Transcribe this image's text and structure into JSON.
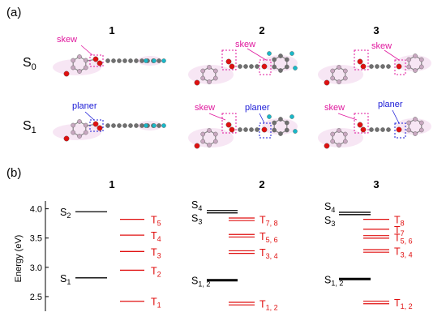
{
  "panel_a": {
    "label": "(a)",
    "columns": [
      "1",
      "2",
      "3"
    ],
    "row_s0": {
      "main": "S",
      "sub": "0"
    },
    "row_s1": {
      "main": "S",
      "sub": "1"
    },
    "annot_skew": "skew",
    "annot_planer": "planer",
    "colors": {
      "skew": "#e0189e",
      "planer": "#1a1ad6",
      "oxygen": "#e01010",
      "carbon": "#707070",
      "hydrogen_aryl": "#c8a8c0",
      "fluorine": "#19b8c8"
    }
  },
  "panel_b": {
    "label": "(b)",
    "columns": [
      "1",
      "2",
      "3"
    ],
    "ylabel": "Energy (eV)",
    "ylim": [
      2.25,
      4.05
    ],
    "yticks": [
      "4.0",
      "3.5",
      "3.0",
      "2.5"
    ],
    "ytick_values": [
      4.0,
      3.5,
      3.0,
      2.5
    ],
    "colors": {
      "singlet": "#000000",
      "triplet": "#e01010"
    },
    "molecules": [
      {
        "name": "1",
        "singlets": [
          {
            "label": "S",
            "sub": "2",
            "energy": 3.95,
            "lines": 1
          },
          {
            "label": "S",
            "sub": "1",
            "energy": 2.82,
            "lines": 1
          }
        ],
        "triplets": [
          {
            "label": "T",
            "sub": "5",
            "energy": 3.82,
            "lines": 1
          },
          {
            "label": "T",
            "sub": "4",
            "energy": 3.55,
            "lines": 1
          },
          {
            "label": "T",
            "sub": "3",
            "energy": 3.27,
            "lines": 1
          },
          {
            "label": "T",
            "sub": "2",
            "energy": 2.95,
            "lines": 1
          },
          {
            "label": "T",
            "sub": "1",
            "energy": 2.42,
            "lines": 1
          }
        ]
      },
      {
        "name": "2",
        "singlets": [
          {
            "label": "S",
            "sub": "4",
            "energy": 3.97,
            "lines": 1
          },
          {
            "label": "S",
            "sub": "3",
            "energy": 3.93,
            "lines": 1
          },
          {
            "label": "S",
            "sub": "1, 2",
            "energy": 2.78,
            "lines": 2
          }
        ],
        "triplets": [
          {
            "label": "T",
            "sub": "7, 8",
            "energy": 3.82,
            "lines": 2
          },
          {
            "label": "T",
            "sub": "5, 6",
            "energy": 3.54,
            "lines": 2
          },
          {
            "label": "T",
            "sub": "3, 4",
            "energy": 3.26,
            "lines": 2
          },
          {
            "label": "T",
            "sub": "1, 2",
            "energy": 2.38,
            "lines": 2
          }
        ]
      },
      {
        "name": "3",
        "singlets": [
          {
            "label": "S",
            "sub": "4",
            "energy": 3.94,
            "lines": 1
          },
          {
            "label": "S",
            "sub": "3",
            "energy": 3.9,
            "lines": 1
          },
          {
            "label": "S",
            "sub": "1, 2",
            "energy": 2.8,
            "lines": 2
          }
        ],
        "triplets": [
          {
            "label": "T",
            "sub": "8",
            "energy": 3.82,
            "lines": 1
          },
          {
            "label": "T",
            "sub": "7",
            "energy": 3.65,
            "lines": 1
          },
          {
            "label": "T",
            "sub": "5, 6",
            "energy": 3.52,
            "lines": 2
          },
          {
            "label": "T",
            "sub": "3, 4",
            "energy": 3.28,
            "lines": 2
          },
          {
            "label": "T",
            "sub": "1, 2",
            "energy": 2.4,
            "lines": 2
          }
        ]
      }
    ]
  }
}
